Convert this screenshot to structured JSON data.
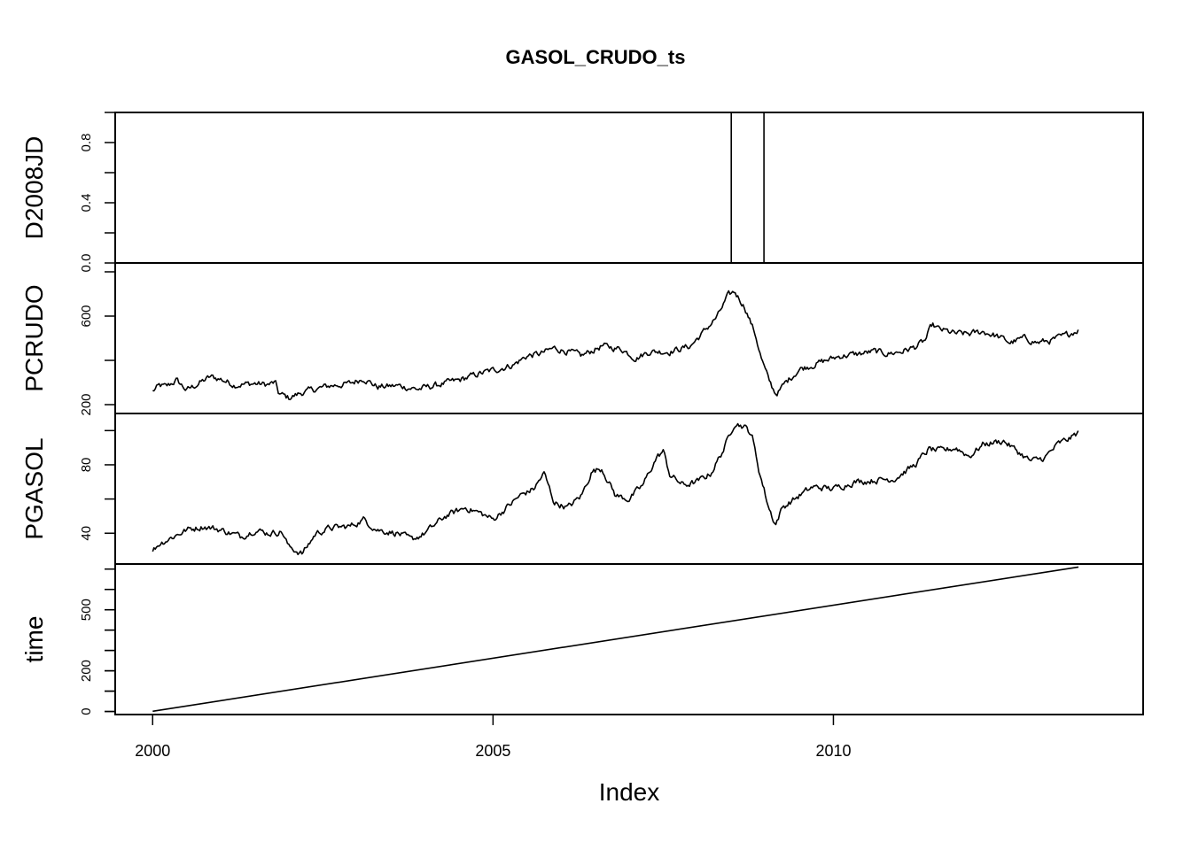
{
  "chart_data": {
    "type": "line",
    "title": "GASOL_CRUDO_ts",
    "xlabel": "Index",
    "x_start": 2000.0,
    "x_end": 2013.6,
    "x_step": "weekly",
    "xlim": [
      1999.45,
      2014.55
    ],
    "x_ticks": [
      "2000",
      "2005",
      "2010"
    ],
    "panels": [
      {
        "name": "D2008JD",
        "ylim": [
          0,
          1
        ],
        "y_ticks": [
          "0.0",
          "0.4",
          "0.8"
        ],
        "segments": [
          [
            2000.0,
            0
          ],
          [
            2008.5,
            0
          ],
          [
            2008.5,
            1
          ],
          [
            2008.98,
            1
          ],
          [
            2008.98,
            0
          ],
          [
            2013.6,
            0
          ]
        ]
      },
      {
        "name": "PCRUDO",
        "ylim": [
          160,
          840
        ],
        "y_ticks": [
          "200",
          "600"
        ],
        "anchors": [
          [
            2000.0,
            260
          ],
          [
            2000.1,
            285
          ],
          [
            2000.2,
            280
          ],
          [
            2000.35,
            310
          ],
          [
            2000.5,
            265
          ],
          [
            2000.7,
            300
          ],
          [
            2000.85,
            325
          ],
          [
            2001.0,
            315
          ],
          [
            2001.2,
            290
          ],
          [
            2001.5,
            295
          ],
          [
            2001.7,
            290
          ],
          [
            2001.8,
            300
          ],
          [
            2001.85,
            250
          ],
          [
            2002.0,
            230
          ],
          [
            2002.2,
            255
          ],
          [
            2002.4,
            270
          ],
          [
            2002.6,
            285
          ],
          [
            2002.9,
            295
          ],
          [
            2003.1,
            320
          ],
          [
            2003.3,
            280
          ],
          [
            2003.6,
            285
          ],
          [
            2003.9,
            270
          ],
          [
            2004.2,
            290
          ],
          [
            2004.5,
            310
          ],
          [
            2004.8,
            340
          ],
          [
            2005.0,
            355
          ],
          [
            2005.3,
            380
          ],
          [
            2005.5,
            420
          ],
          [
            2005.7,
            430
          ],
          [
            2005.9,
            455
          ],
          [
            2006.1,
            440
          ],
          [
            2006.3,
            420
          ],
          [
            2006.6,
            465
          ],
          [
            2006.9,
            450
          ],
          [
            2007.1,
            410
          ],
          [
            2007.3,
            440
          ],
          [
            2007.6,
            440
          ],
          [
            2007.9,
            465
          ],
          [
            2008.1,
            530
          ],
          [
            2008.3,
            600
          ],
          [
            2008.45,
            690
          ],
          [
            2008.55,
            710
          ],
          [
            2008.7,
            640
          ],
          [
            2008.85,
            520
          ],
          [
            2008.95,
            400
          ],
          [
            2009.05,
            310
          ],
          [
            2009.15,
            250
          ],
          [
            2009.2,
            260
          ],
          [
            2009.3,
            300
          ],
          [
            2009.5,
            360
          ],
          [
            2009.8,
            390
          ],
          [
            2010.1,
            420
          ],
          [
            2010.4,
            430
          ],
          [
            2010.6,
            440
          ],
          [
            2010.8,
            430
          ],
          [
            2011.0,
            440
          ],
          [
            2011.2,
            460
          ],
          [
            2011.35,
            490
          ],
          [
            2011.45,
            560
          ],
          [
            2011.55,
            540
          ],
          [
            2011.8,
            520
          ],
          [
            2012.0,
            520
          ],
          [
            2012.2,
            530
          ],
          [
            2012.4,
            510
          ],
          [
            2012.6,
            480
          ],
          [
            2012.8,
            500
          ],
          [
            2013.0,
            480
          ],
          [
            2013.2,
            490
          ],
          [
            2013.4,
            510
          ],
          [
            2013.6,
            540
          ]
        ]
      },
      {
        "name": "PGASOL",
        "ylim": [
          22,
          110
        ],
        "y_ticks": [
          "40",
          "80"
        ],
        "anchors": [
          [
            2000.0,
            30
          ],
          [
            2000.1,
            34
          ],
          [
            2000.3,
            38
          ],
          [
            2000.5,
            42
          ],
          [
            2000.75,
            44
          ],
          [
            2001.0,
            42
          ],
          [
            2001.3,
            38
          ],
          [
            2001.5,
            42
          ],
          [
            2001.7,
            40
          ],
          [
            2001.9,
            41
          ],
          [
            2002.0,
            32
          ],
          [
            2002.2,
            28
          ],
          [
            2002.4,
            40
          ],
          [
            2002.6,
            43
          ],
          [
            2002.9,
            44
          ],
          [
            2003.1,
            48
          ],
          [
            2003.3,
            42
          ],
          [
            2003.6,
            40
          ],
          [
            2003.8,
            36
          ],
          [
            2004.0,
            40
          ],
          [
            2004.3,
            50
          ],
          [
            2004.6,
            55
          ],
          [
            2004.8,
            52
          ],
          [
            2005.0,
            48
          ],
          [
            2005.2,
            55
          ],
          [
            2005.4,
            62
          ],
          [
            2005.6,
            66
          ],
          [
            2005.75,
            75
          ],
          [
            2005.9,
            58
          ],
          [
            2006.1,
            55
          ],
          [
            2006.3,
            62
          ],
          [
            2006.45,
            76
          ],
          [
            2006.6,
            78
          ],
          [
            2006.8,
            62
          ],
          [
            2007.0,
            60
          ],
          [
            2007.2,
            68
          ],
          [
            2007.4,
            84
          ],
          [
            2007.5,
            88
          ],
          [
            2007.6,
            74
          ],
          [
            2007.8,
            68
          ],
          [
            2008.0,
            70
          ],
          [
            2008.2,
            75
          ],
          [
            2008.4,
            90
          ],
          [
            2008.55,
            105
          ],
          [
            2008.7,
            102
          ],
          [
            2008.8,
            98
          ],
          [
            2008.9,
            78
          ],
          [
            2009.05,
            55
          ],
          [
            2009.15,
            45
          ],
          [
            2009.25,
            55
          ],
          [
            2009.5,
            62
          ],
          [
            2009.7,
            67
          ],
          [
            2010.0,
            66
          ],
          [
            2010.3,
            70
          ],
          [
            2010.6,
            71
          ],
          [
            2010.9,
            72
          ],
          [
            2011.2,
            80
          ],
          [
            2011.4,
            89
          ],
          [
            2011.6,
            88
          ],
          [
            2011.8,
            90
          ],
          [
            2012.0,
            85
          ],
          [
            2012.2,
            92
          ],
          [
            2012.5,
            94
          ],
          [
            2012.7,
            88
          ],
          [
            2012.9,
            82
          ],
          [
            2013.1,
            84
          ],
          [
            2013.3,
            92
          ],
          [
            2013.5,
            96
          ],
          [
            2013.6,
            99
          ]
        ]
      },
      {
        "name": "time",
        "ylim": [
          -15,
          725
        ],
        "y_ticks": [
          "0",
          "200",
          "500"
        ],
        "segments": [
          [
            2000.0,
            1
          ],
          [
            2013.6,
            710
          ]
        ]
      }
    ],
    "grid": false,
    "legend": "none"
  }
}
